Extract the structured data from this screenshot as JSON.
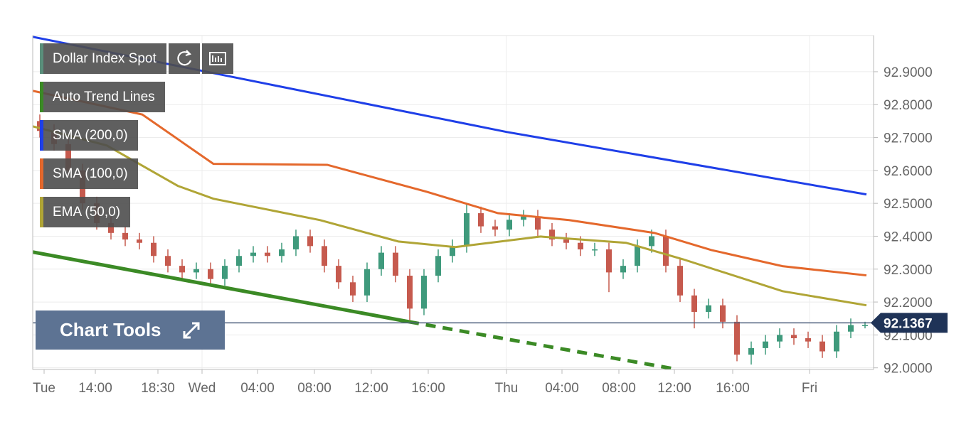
{
  "chart_data": {
    "type": "candlestick",
    "ylim": [
      91.995,
      93.01
    ],
    "xlim": [
      -0.5,
      58.6
    ],
    "yticks": [
      {
        "value": 92.0,
        "label": "92.0000"
      },
      {
        "value": 92.1,
        "label": "92.1000"
      },
      {
        "value": 92.2,
        "label": "92.2000"
      },
      {
        "value": 92.3,
        "label": "92.3000"
      },
      {
        "value": 92.4,
        "label": "92.4000"
      },
      {
        "value": 92.5,
        "label": "92.5000"
      },
      {
        "value": 92.6,
        "label": "92.6000"
      },
      {
        "value": 92.7,
        "label": "92.7000"
      },
      {
        "value": 92.8,
        "label": "92.8000"
      },
      {
        "value": 92.9,
        "label": "92.9000"
      }
    ],
    "xticks": [
      {
        "value": 0.3,
        "label": "Tue"
      },
      {
        "value": 3.9,
        "label": "14:00"
      },
      {
        "value": 8.3,
        "label": "18:30"
      },
      {
        "value": 11.4,
        "label": "Wed"
      },
      {
        "value": 15.3,
        "label": "04:00"
      },
      {
        "value": 19.3,
        "label": "08:00"
      },
      {
        "value": 23.3,
        "label": "12:00"
      },
      {
        "value": 27.3,
        "label": "16:00"
      },
      {
        "value": 32.8,
        "label": "Thu"
      },
      {
        "value": 36.7,
        "label": "04:00"
      },
      {
        "value": 40.7,
        "label": "08:00"
      },
      {
        "value": 44.6,
        "label": "12:00"
      },
      {
        "value": 48.7,
        "label": "16:00"
      },
      {
        "value": 54.1,
        "label": "Fri"
      }
    ],
    "x_grid_ticks": [
      3,
      8,
      13
    ],
    "grid": true,
    "x": [
      0,
      1,
      2,
      3,
      4,
      5,
      6,
      7,
      8,
      9,
      10,
      11,
      12,
      13,
      14,
      15,
      16,
      17,
      18,
      19,
      20,
      21,
      22,
      23,
      24,
      25,
      26,
      27,
      28,
      29,
      30,
      31,
      32,
      33,
      34,
      35,
      36,
      37,
      38,
      39,
      40,
      41,
      42,
      43,
      44,
      45,
      46,
      47,
      48,
      49,
      50,
      51,
      52,
      53,
      54,
      55,
      56,
      57,
      58
    ],
    "series": [
      {
        "name": "Dollar Index Spot",
        "color": "#5a8f7b",
        "up_color": "#3f9a7c",
        "down_color": "#c65a4e",
        "open": [
          92.75,
          92.72,
          92.68,
          92.6,
          92.5,
          92.44,
          92.41,
          92.39,
          92.38,
          92.34,
          92.31,
          92.29,
          92.3,
          92.27,
          92.31,
          92.34,
          92.35,
          92.34,
          92.36,
          92.4,
          92.37,
          92.31,
          92.26,
          92.22,
          92.3,
          92.35,
          92.28,
          92.18,
          92.28,
          92.34,
          92.37,
          92.47,
          92.43,
          92.42,
          92.45,
          92.46,
          92.42,
          92.39,
          92.38,
          92.36,
          92.36,
          92.29,
          92.31,
          92.37,
          92.4,
          92.31,
          92.22,
          92.17,
          92.19,
          92.14,
          92.04,
          92.06,
          92.08,
          92.1,
          92.09,
          92.08,
          92.05,
          92.11,
          92.13
        ],
        "high": [
          92.77,
          92.74,
          92.7,
          92.62,
          92.52,
          92.46,
          92.43,
          92.41,
          92.4,
          92.36,
          92.33,
          92.32,
          92.32,
          92.33,
          92.36,
          92.37,
          92.37,
          92.38,
          92.42,
          92.42,
          92.39,
          92.33,
          92.28,
          92.32,
          92.37,
          92.37,
          92.3,
          92.3,
          92.36,
          92.39,
          92.5,
          92.49,
          92.45,
          92.47,
          92.48,
          92.48,
          92.44,
          92.41,
          92.4,
          92.38,
          92.38,
          92.33,
          92.39,
          92.42,
          92.42,
          92.33,
          92.24,
          92.21,
          92.21,
          92.16,
          92.08,
          92.1,
          92.12,
          92.12,
          92.11,
          92.1,
          92.13,
          92.15,
          92.14
        ],
        "low": [
          92.7,
          92.66,
          92.58,
          92.48,
          92.42,
          92.39,
          92.37,
          92.36,
          92.32,
          92.29,
          92.27,
          92.27,
          92.25,
          92.25,
          92.29,
          92.32,
          92.32,
          92.32,
          92.34,
          92.35,
          92.29,
          92.24,
          92.2,
          92.2,
          92.28,
          92.26,
          92.14,
          92.16,
          92.26,
          92.32,
          92.35,
          92.41,
          92.4,
          92.4,
          92.43,
          92.4,
          92.37,
          92.36,
          92.34,
          92.34,
          92.23,
          92.27,
          92.29,
          92.35,
          92.29,
          92.2,
          92.12,
          92.15,
          92.12,
          92.02,
          92.01,
          92.04,
          92.06,
          92.07,
          92.06,
          92.03,
          92.03,
          92.09,
          92.12
        ],
        "close": [
          92.72,
          92.68,
          92.6,
          92.5,
          92.44,
          92.41,
          92.39,
          92.38,
          92.34,
          92.31,
          92.29,
          92.3,
          92.27,
          92.31,
          92.34,
          92.35,
          92.34,
          92.36,
          92.4,
          92.37,
          92.31,
          92.26,
          92.22,
          92.3,
          92.35,
          92.28,
          92.18,
          92.28,
          92.34,
          92.37,
          92.47,
          92.43,
          92.42,
          92.45,
          92.46,
          92.42,
          92.39,
          92.38,
          92.36,
          92.36,
          92.29,
          92.31,
          92.37,
          92.4,
          92.31,
          92.22,
          92.17,
          92.19,
          92.14,
          92.04,
          92.06,
          92.08,
          92.1,
          92.09,
          92.08,
          92.05,
          92.11,
          92.13,
          92.13
        ]
      }
    ],
    "overlays": [
      {
        "name": "Auto Trend Lines",
        "color": "#3b8a25",
        "width": 5,
        "x": [
          -0.5,
          25.95
        ],
        "values": [
          92.352,
          92.14
        ],
        "projection_x": [
          25.95,
          44.7
        ],
        "projection_values": [
          92.14,
          91.996
        ]
      },
      {
        "name": "SMA (200,0)",
        "color": "#1f3fe8",
        "width": 3,
        "x": [
          -0.5,
          32.8,
          58.1
        ],
        "values": [
          93.006,
          92.717,
          92.527
        ]
      },
      {
        "name": "SMA (100,0)",
        "color": "#e4682c",
        "width": 3,
        "x": [
          -0.5,
          7.2,
          12.2,
          20.2,
          27.2,
          32.2,
          37.2,
          43.2,
          47.2,
          52.2,
          58.1
        ],
        "values": [
          92.842,
          92.77,
          92.62,
          92.617,
          92.535,
          92.47,
          92.449,
          92.41,
          92.358,
          92.309,
          92.281
        ]
      },
      {
        "name": "EMA (50,0)",
        "color": "#b0a536",
        "width": 3,
        "x": [
          -0.5,
          4.7,
          9.7,
          12.2,
          19.7,
          25.2,
          29.2,
          35.2,
          41.2,
          45.2,
          52.2,
          58.1
        ],
        "values": [
          92.734,
          92.676,
          92.553,
          92.514,
          92.449,
          92.384,
          92.367,
          92.399,
          92.38,
          92.33,
          92.233,
          92.19
        ]
      }
    ],
    "last_price": 92.1367
  },
  "controls": {
    "chart_tools": "Chart Tools"
  }
}
